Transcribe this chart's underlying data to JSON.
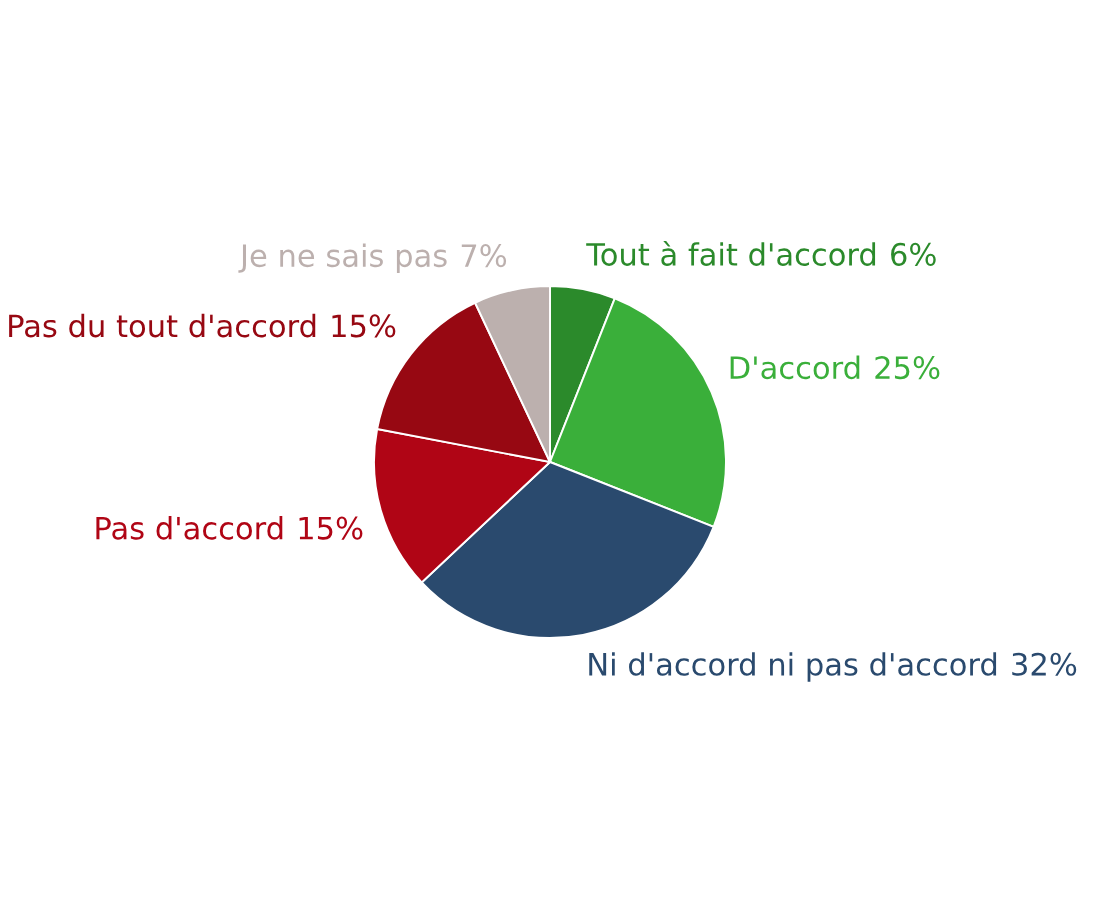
{
  "chart_data": {
    "type": "pie",
    "categories": [
      "Tout à fait d'accord",
      "D'accord",
      "Ni d'accord ni pas d'accord",
      "Pas d'accord",
      "Pas du tout d'accord",
      "Je ne sais pas"
    ],
    "values": [
      6,
      25,
      32,
      15,
      15,
      7
    ],
    "value_labels": [
      "6%",
      "25%",
      "32%",
      "15%",
      "15%",
      "7%"
    ],
    "colors": [
      "#2b8a2b",
      "#3aaf3a",
      "#2a4a6e",
      "#b00515",
      "#970812",
      "#bcb0ae"
    ]
  }
}
